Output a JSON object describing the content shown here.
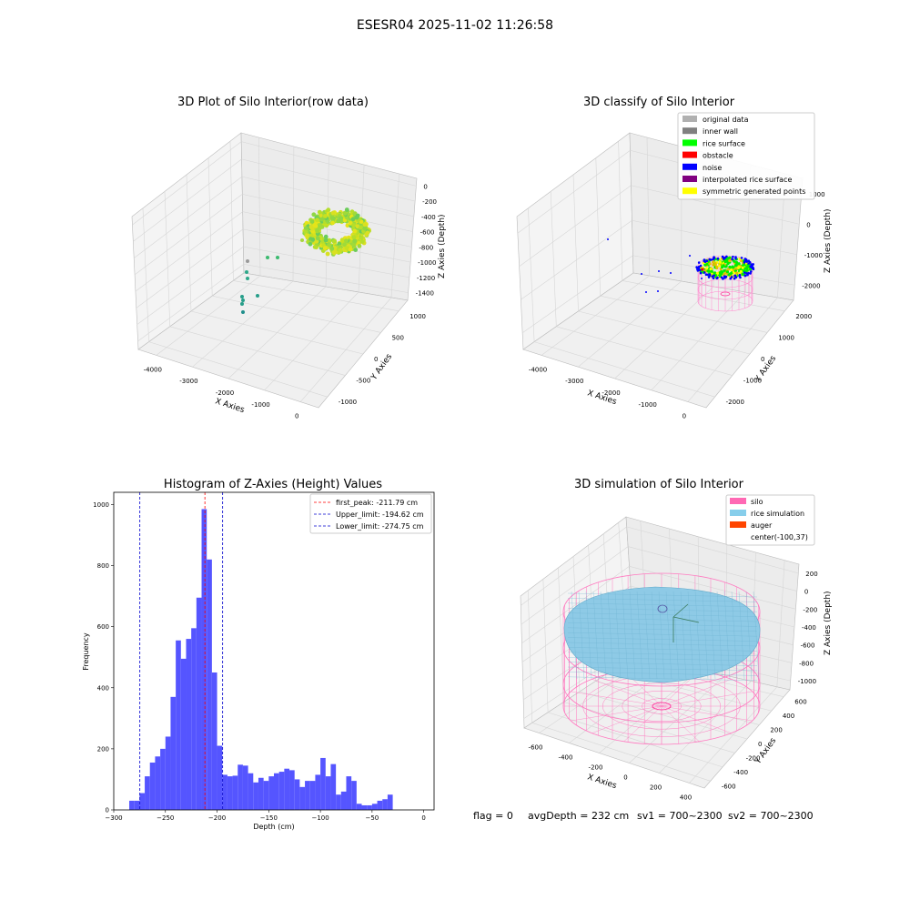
{
  "figure": {
    "suptitle": "ESESR04 2025-11-02 11:26:58",
    "footer": {
      "flag": "flag = 0",
      "avg_depth": "avgDepth = 232 cm",
      "sv1": "sv1 = 700~2300",
      "sv2": "sv2 = 700~2300"
    }
  },
  "chart_data": [
    {
      "type": "scatter3d",
      "title": "3D Plot of Silo Interior(row data)",
      "xlabel": "X Axies",
      "ylabel": "Y Axies",
      "zlabel": "Z Axies (Depth)",
      "x_ticks": [
        "-4000",
        "-3000",
        "-2000",
        "-1000",
        "0"
      ],
      "y_ticks": [
        "-1000",
        "-500",
        "0",
        "500",
        "1000"
      ],
      "z_ticks": [
        "0",
        "-200",
        "-400",
        "-600",
        "-800",
        "-1000",
        "-1200",
        "-1400"
      ],
      "colormap": "viridis",
      "grid": true
    },
    {
      "type": "scatter3d",
      "title": "3D classify of Silo Interior",
      "xlabel": "X Axies",
      "ylabel": "Y Axies",
      "zlabel": "Z Axies (Depth)",
      "x_ticks": [
        "-4000",
        "-3000",
        "-2000",
        "-1000",
        "0"
      ],
      "y_ticks": [
        "-2000",
        "-1000",
        "0",
        "1000",
        "2000"
      ],
      "z_ticks": [
        "1000",
        "0",
        "-1000",
        "-2000"
      ],
      "legend_position": "top-right",
      "legend": [
        {
          "label": "original data",
          "color": "#b0b0b0"
        },
        {
          "label": "inner wall",
          "color": "#808080"
        },
        {
          "label": "rice surface",
          "color": "#00ff00"
        },
        {
          "label": "obstacle",
          "color": "#ff0000"
        },
        {
          "label": "noise",
          "color": "#0000ff"
        },
        {
          "label": "interpolated rice surface",
          "color": "#800080"
        },
        {
          "label": "symmetric generated points",
          "color": "#ffff00"
        }
      ],
      "grid": true
    },
    {
      "type": "bar",
      "title": "Histogram of Z-Axies (Height) Values",
      "xlabel": "Depth (cm)",
      "ylabel": "Frequency",
      "xlim": [
        -300,
        10
      ],
      "ylim": [
        0,
        1040
      ],
      "x_ticks": [
        -300,
        -250,
        -200,
        -150,
        -100,
        -50,
        0
      ],
      "y_ticks": [
        0,
        200,
        400,
        600,
        800,
        1000
      ],
      "bin_width": 5,
      "bins_start": [
        -290,
        -285,
        -280,
        -275,
        -270,
        -265,
        -260,
        -255,
        -250,
        -245,
        -240,
        -235,
        -230,
        -225,
        -220,
        -215,
        -210,
        -205,
        -200,
        -195,
        -190,
        -185,
        -180,
        -175,
        -170,
        -165,
        -160,
        -155,
        -150,
        -145,
        -140,
        -135,
        -130,
        -125,
        -120,
        -115,
        -110,
        -105,
        -100,
        -95,
        -90,
        -85,
        -80,
        -75,
        -70,
        -65,
        -60,
        -55,
        -50,
        -45,
        -40,
        -35,
        -30,
        -25,
        -20,
        -15,
        -10,
        -5,
        0
      ],
      "values": [
        0,
        30,
        30,
        55,
        110,
        155,
        175,
        200,
        240,
        370,
        555,
        495,
        560,
        595,
        695,
        985,
        820,
        450,
        210,
        115,
        110,
        112,
        148,
        145,
        120,
        90,
        105,
        95,
        110,
        120,
        125,
        135,
        130,
        100,
        75,
        95,
        95,
        115,
        170,
        110,
        150,
        50,
        60,
        110,
        95,
        20,
        15,
        15,
        20,
        30,
        35,
        50,
        0,
        0,
        0,
        0,
        0,
        0,
        0
      ],
      "bar_color": "#5555ff",
      "reference_lines": [
        {
          "label": "first_peak: -211.79 cm",
          "x": -211.79,
          "color": "#ff0000"
        },
        {
          "label": "Upper_limit: -194.62 cm",
          "x": -194.62,
          "color": "#0000cc"
        },
        {
          "label": "Lower_limit: -274.75 cm",
          "x": -274.75,
          "color": "#0000cc"
        }
      ],
      "legend_position": "top-right"
    },
    {
      "type": "surface3d",
      "title": "3D simulation of Silo Interior",
      "xlabel": "X Axies",
      "ylabel": "Y Axies",
      "zlabel": "Z Axies (Depth)",
      "x_ticks": [
        "-600",
        "-400",
        "-200",
        "0",
        "200",
        "400"
      ],
      "y_ticks": [
        "-600",
        "-400",
        "-200",
        "0",
        "200",
        "400",
        "600"
      ],
      "z_ticks": [
        "200",
        "0",
        "-200",
        "-400",
        "-600",
        "-800",
        "-1000"
      ],
      "legend_position": "top-right",
      "legend": [
        {
          "label": "silo",
          "color": "#ff69b4"
        },
        {
          "label": "rice simulation",
          "color": "#87ceeb"
        },
        {
          "label": "auger",
          "color": "#ff4500"
        },
        {
          "label": "center(-100,37)",
          "color": "#ffffff"
        }
      ],
      "grid": true
    }
  ]
}
